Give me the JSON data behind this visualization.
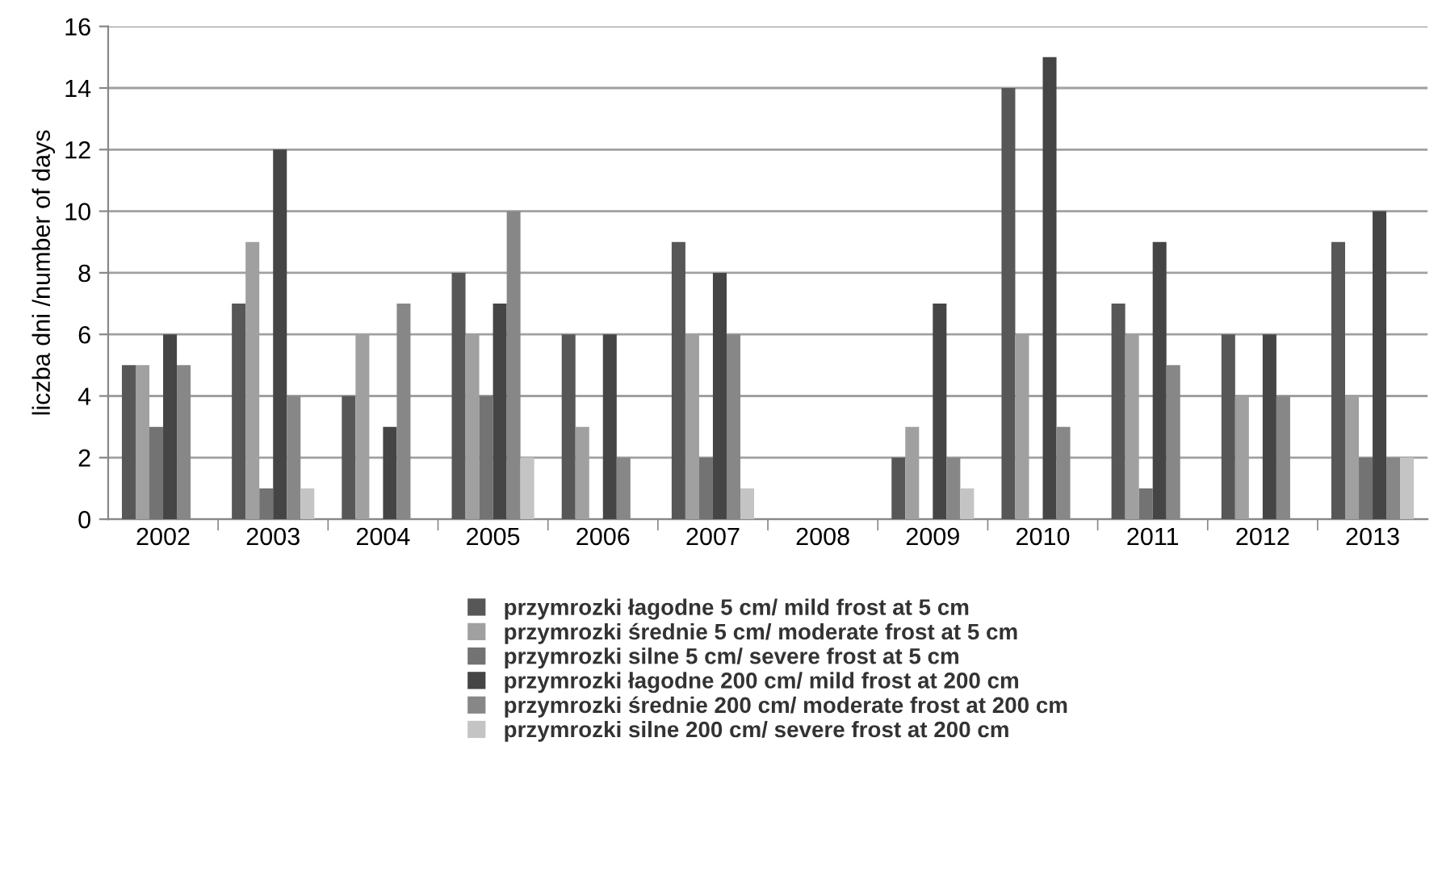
{
  "chart_data": {
    "type": "bar",
    "ylabel": "liczba dni /number of days",
    "categories": [
      "2002",
      "2003",
      "2004",
      "2005",
      "2006",
      "2007",
      "2008",
      "2009",
      "2010",
      "2011",
      "2012",
      "2013"
    ],
    "series": [
      {
        "name": "przymrozki łagodne 5 cm/ mild frost at 5 cm",
        "color": "#575757",
        "values": [
          5,
          7,
          4,
          8,
          6,
          9,
          0,
          2,
          14,
          7,
          6,
          9
        ]
      },
      {
        "name": "przymrozki średnie 5 cm/ moderate frost at 5 cm",
        "color": "#a0a0a0",
        "values": [
          5,
          9,
          6,
          6,
          3,
          6,
          0,
          3,
          6,
          6,
          4,
          4
        ]
      },
      {
        "name": "przymrozki silne 5 cm/ severe frost at 5 cm",
        "color": "#737373",
        "values": [
          3,
          1,
          0,
          4,
          0,
          2,
          0,
          0,
          0,
          1,
          0,
          2
        ]
      },
      {
        "name": "przymrozki łagodne 200 cm/ mild frost at 200 cm",
        "color": "#454545",
        "values": [
          6,
          12,
          3,
          7,
          6,
          8,
          0,
          7,
          15,
          9,
          6,
          10
        ]
      },
      {
        "name": "przymrozki średnie 200 cm/ moderate frost at 200 cm",
        "color": "#878787",
        "values": [
          5,
          4,
          7,
          10,
          2,
          6,
          0,
          2,
          3,
          5,
          4,
          2
        ]
      },
      {
        "name": "przymrozki silne 200 cm/ severe frost at 200 cm",
        "color": "#c4c4c4",
        "values": [
          0,
          1,
          0,
          2,
          0,
          1,
          0,
          1,
          0,
          0,
          0,
          2
        ]
      }
    ],
    "ylim": [
      0,
      16
    ],
    "yticks": [
      0,
      2,
      4,
      6,
      8,
      10,
      12,
      14,
      16
    ],
    "grid": "y",
    "legend": "bottom"
  }
}
